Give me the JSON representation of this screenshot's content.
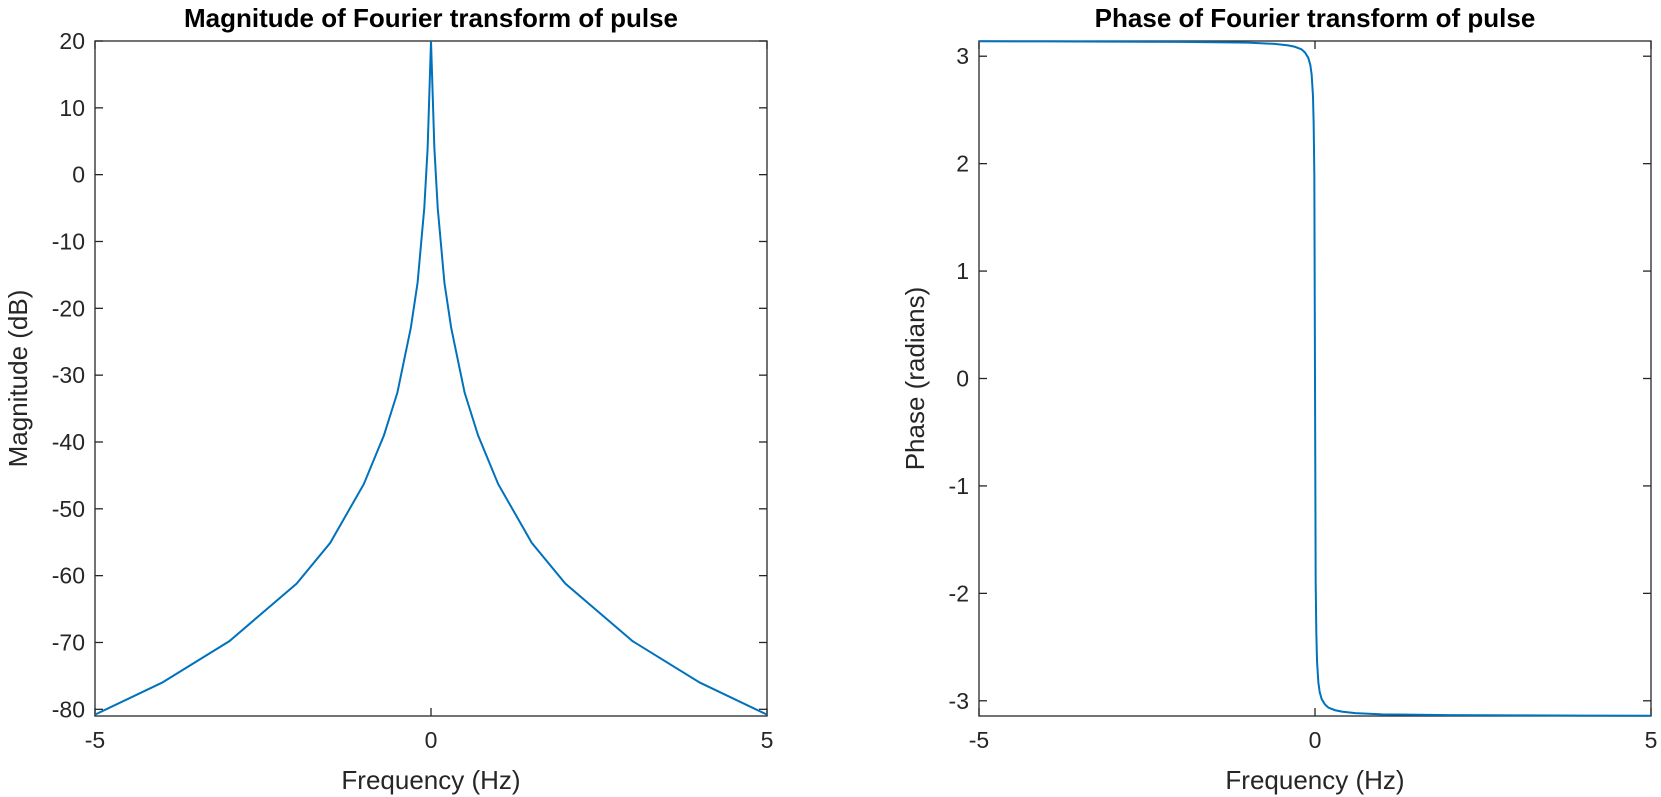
{
  "chart_data": [
    {
      "type": "line",
      "title": "Magnitude of Fourier transform of pulse",
      "xlabel": "Frequency (Hz)",
      "ylabel": "Magnitude (dB)",
      "xlim": [
        -5,
        5
      ],
      "ylim": [
        -81,
        20
      ],
      "xticks": [
        -5,
        0,
        5
      ],
      "yticks": [
        20,
        10,
        0,
        -10,
        -20,
        -30,
        -40,
        -50,
        -60,
        -70,
        -80
      ],
      "xtick_labels": [
        "-5",
        "0",
        "5"
      ],
      "ytick_labels": [
        "20",
        "10",
        "0",
        "-10",
        "-20",
        "-30",
        "-40",
        "-50",
        "-60",
        "-70",
        "-80"
      ],
      "grid": false,
      "color": "#0072bd",
      "x": [
        -5,
        -4,
        -3,
        -2,
        -1.5,
        -1,
        -0.7,
        -0.5,
        -0.3,
        -0.2,
        -0.1,
        -0.05,
        0,
        0.05,
        0.1,
        0.2,
        0.3,
        0.5,
        0.7,
        1,
        1.5,
        2,
        3,
        4,
        5
      ],
      "y": [
        -80.8,
        -76.0,
        -69.8,
        -61.2,
        -55.1,
        -46.3,
        -39.0,
        -32.6,
        -22.9,
        -16.2,
        -5.0,
        4.0,
        20.0,
        4.0,
        -5.0,
        -16.2,
        -22.9,
        -32.6,
        -39.0,
        -46.3,
        -55.1,
        -61.2,
        -69.8,
        -76.0,
        -80.8
      ]
    },
    {
      "type": "line",
      "title": "Phase of Fourier transform of pulse",
      "xlabel": "Frequency (Hz)",
      "ylabel": "Phase (radians)",
      "xlim": [
        -5,
        5
      ],
      "ylim": [
        -3.1416,
        3.1416
      ],
      "xticks": [
        -5,
        0,
        5
      ],
      "yticks": [
        3,
        2,
        1,
        0,
        -1,
        -2,
        -3
      ],
      "xtick_labels": [
        "-5",
        "0",
        "5"
      ],
      "ytick_labels": [
        "3",
        "2",
        "1",
        "0",
        "-1",
        "-2",
        "-3"
      ],
      "grid": false,
      "color": "#0072bd",
      "x": [
        -5,
        -4,
        -3,
        -2,
        -1,
        -0.6,
        -0.4,
        -0.3,
        -0.2,
        -0.15,
        -0.1,
        -0.07,
        -0.05,
        -0.03,
        -0.02,
        -0.01,
        0,
        0.01,
        0.02,
        0.03,
        0.05,
        0.07,
        0.1,
        0.15,
        0.2,
        0.3,
        0.4,
        0.6,
        1,
        2,
        3,
        4,
        5
      ],
      "y": [
        3.139,
        3.138,
        3.136,
        3.133,
        3.126,
        3.115,
        3.101,
        3.088,
        3.064,
        3.036,
        2.985,
        2.92,
        2.83,
        2.63,
        2.37,
        1.9,
        0,
        -1.9,
        -2.37,
        -2.63,
        -2.83,
        -2.92,
        -2.985,
        -3.036,
        -3.064,
        -3.088,
        -3.101,
        -3.115,
        -3.126,
        -3.133,
        -3.136,
        -3.138,
        -3.139
      ]
    }
  ]
}
